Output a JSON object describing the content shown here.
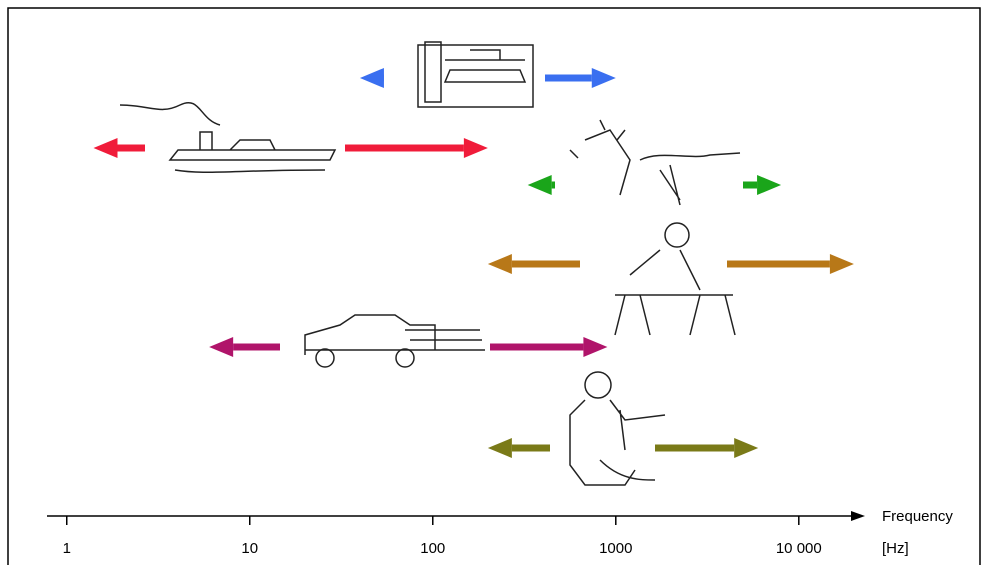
{
  "chart_data": {
    "type": "range",
    "x_label": "Frequency",
    "x_unit": "[Hz]",
    "xscale": "log",
    "xlim": [
      0.78,
      23000
    ],
    "xticks": [
      1,
      10,
      100,
      1000,
      {
        "value": 10000,
        "label": "10 000"
      }
    ],
    "ranges": [
      {
        "low": 40,
        "high": 1000,
        "color": "#3a6ff0"
      },
      {
        "low": 1.4,
        "high": 200,
        "color": "#f01c3a"
      },
      {
        "low": 330,
        "high": 8000,
        "color": "#1aa51a"
      },
      {
        "low": 200,
        "high": 20000,
        "color": "#b87818"
      },
      {
        "low": 6,
        "high": 900,
        "color": "#b0146a"
      },
      {
        "low": 200,
        "high": 6000,
        "color": "#7a7a18"
      }
    ]
  }
}
